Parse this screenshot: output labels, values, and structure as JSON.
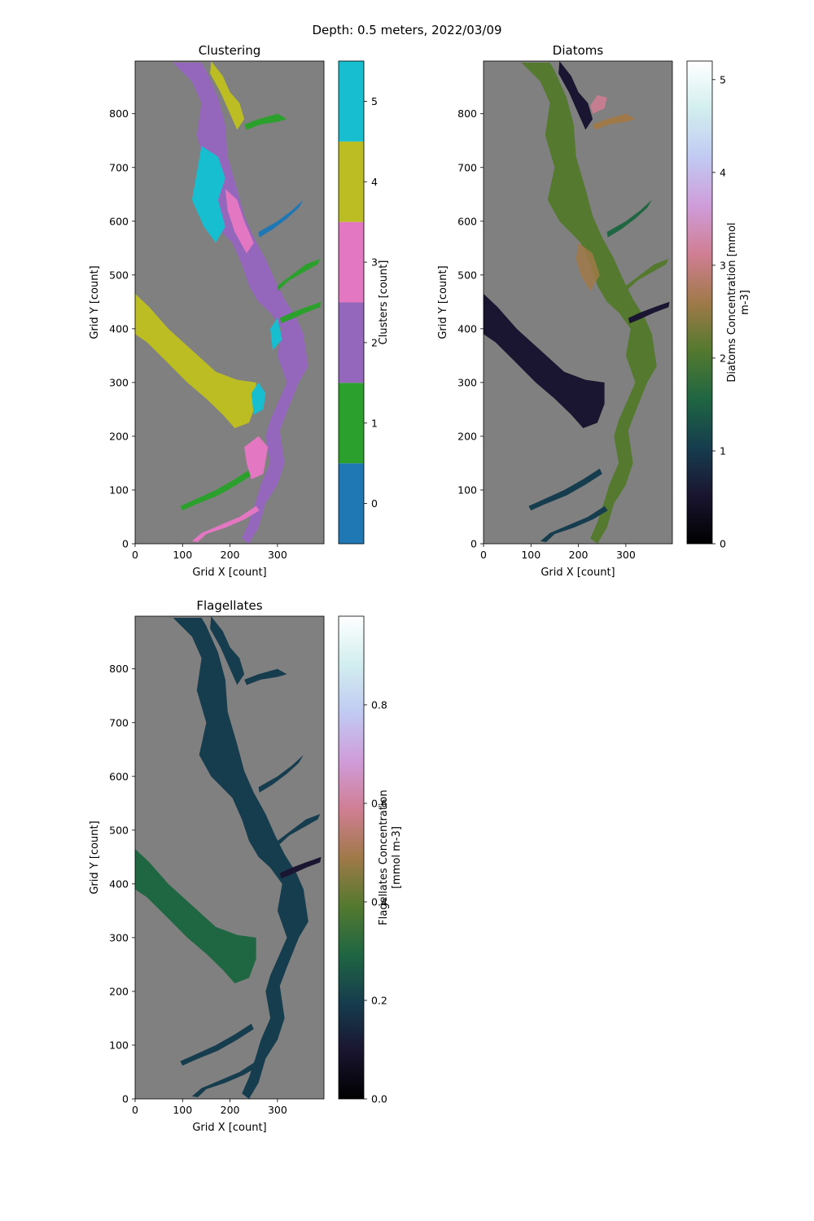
{
  "figure": {
    "suptitle": "Depth: 0.5 meters, 2022/03/09"
  },
  "colors": {
    "land": "#808080",
    "clusters": [
      "#1f77b4",
      "#2ca02c",
      "#9467bd",
      "#e377c2",
      "#bcbd22",
      "#17becf"
    ],
    "cubehelix": [
      "#000000",
      "#1a1530",
      "#163d4e",
      "#1f6642",
      "#54792f",
      "#a07949",
      "#d07e93",
      "#cf9cda",
      "#c1caf3",
      "#d2eeef",
      "#ffffff"
    ]
  },
  "chart_data": [
    {
      "type": "heatmap",
      "title": "Clustering",
      "xlabel": "Grid X [count]",
      "ylabel": "Grid Y [count]",
      "xlim": [
        0,
        398
      ],
      "ylim": [
        0,
        898
      ],
      "xticks": [
        0,
        100,
        200,
        300
      ],
      "yticks": [
        0,
        100,
        200,
        300,
        400,
        500,
        600,
        700,
        800
      ],
      "colorbar": {
        "label": "Clusters [count]",
        "kind": "discrete",
        "range": [
          -0.5,
          5.5
        ],
        "ticks": [
          0,
          1,
          2,
          3,
          4,
          5
        ]
      }
    },
    {
      "type": "heatmap",
      "title": "Diatoms",
      "xlabel": "Grid X [count]",
      "ylabel": "Grid Y [count]",
      "xlim": [
        0,
        398
      ],
      "ylim": [
        0,
        898
      ],
      "xticks": [
        0,
        100,
        200,
        300
      ],
      "yticks": [
        0,
        100,
        200,
        300,
        400,
        500,
        600,
        700,
        800
      ],
      "colorbar": {
        "label_lines": [
          "Diatoms Concentration [mmol",
          "m-3]"
        ],
        "kind": "continuous",
        "range": [
          0,
          5.2
        ],
        "ticks": [
          0,
          1,
          2,
          3,
          4,
          5
        ]
      }
    },
    {
      "type": "heatmap",
      "title": "Flagellates",
      "xlabel": "Grid X [count]",
      "ylabel": "Grid Y [count]",
      "xlim": [
        0,
        398
      ],
      "ylim": [
        0,
        898
      ],
      "xticks": [
        0,
        100,
        200,
        300
      ],
      "yticks": [
        0,
        100,
        200,
        300,
        400,
        500,
        600,
        700,
        800
      ],
      "colorbar": {
        "label_lines": [
          "Flagellates Concentration",
          "[mmol m-3]"
        ],
        "kind": "continuous",
        "range": [
          0,
          0.98
        ],
        "ticks": [
          0.0,
          0.2,
          0.4,
          0.6,
          0.8
        ]
      }
    }
  ]
}
